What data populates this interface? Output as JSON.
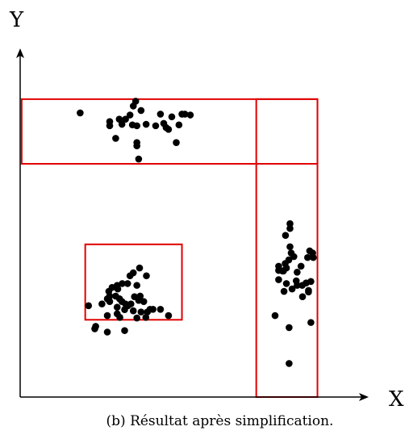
{
  "axes": {
    "x_label": "X",
    "y_label": "Y"
  },
  "caption": "(b) Résultat après simplification.",
  "colors": {
    "points": "#000000",
    "boxes": "#e00000",
    "axes": "#000000"
  },
  "chart_data": {
    "type": "scatter",
    "xlabel": "X",
    "ylabel": "Y",
    "xlim": [
      0,
      100
    ],
    "ylim": [
      0,
      100
    ],
    "grid": false,
    "boxes": [
      {
        "x0": 0.5,
        "x1": 99.6,
        "y0": 77.9,
        "y1": 99.5
      },
      {
        "x0": 79.1,
        "x1": 99.6,
        "y0": 0.0,
        "y1": 99.5
      },
      {
        "x0": 21.8,
        "x1": 54.2,
        "y0": 25.8,
        "y1": 51.0
      }
    ],
    "points": [
      [
        20.1,
        94.9
      ],
      [
        37.9,
        97.2
      ],
      [
        38.7,
        98.8
      ],
      [
        40.5,
        95.7
      ],
      [
        35.3,
        92.8
      ],
      [
        34.1,
        91.1
      ],
      [
        33.2,
        92.8
      ],
      [
        30.0,
        90.6
      ],
      [
        30.0,
        92.0
      ],
      [
        36.8,
        94.2
      ],
      [
        37.6,
        90.9
      ],
      [
        39.1,
        90.6
      ],
      [
        42.2,
        91.1
      ],
      [
        45.4,
        90.6
      ],
      [
        47.0,
        94.5
      ],
      [
        48.1,
        91.4
      ],
      [
        49.7,
        89.4
      ],
      [
        48.9,
        90.0
      ],
      [
        50.8,
        93.6
      ],
      [
        53.2,
        90.9
      ],
      [
        54.2,
        94.5
      ],
      [
        55.2,
        94.5
      ],
      [
        57.0,
        94.2
      ],
      [
        52.3,
        85.0
      ],
      [
        39.1,
        85.0
      ],
      [
        39.1,
        83.9
      ],
      [
        39.7,
        79.5
      ],
      [
        32.0,
        86.4
      ],
      [
        37.9,
        41.5
      ],
      [
        40.0,
        43.1
      ],
      [
        36.8,
        40.5
      ],
      [
        42.3,
        40.5
      ],
      [
        39.1,
        37.3
      ],
      [
        36.0,
        37.9
      ],
      [
        32.5,
        37.3
      ],
      [
        34.2,
        37.9
      ],
      [
        32.7,
        36.1
      ],
      [
        30.8,
        36.6
      ],
      [
        29.7,
        35.3
      ],
      [
        32.0,
        33.7
      ],
      [
        30.0,
        33.7
      ],
      [
        33.3,
        32.8
      ],
      [
        29.2,
        32.8
      ],
      [
        30.0,
        31.9
      ],
      [
        32.5,
        30.0
      ],
      [
        34.1,
        31.9
      ],
      [
        35.3,
        31.1
      ],
      [
        37.1,
        31.1
      ],
      [
        38.3,
        33.5
      ],
      [
        40.2,
        33.7
      ],
      [
        41.4,
        31.9
      ],
      [
        43.5,
        29.3
      ],
      [
        44.5,
        29.3
      ],
      [
        47.0,
        29.3
      ],
      [
        49.7,
        27.2
      ],
      [
        42.6,
        28.4
      ],
      [
        42.1,
        26.6
      ],
      [
        40.5,
        28.4
      ],
      [
        39.1,
        26.4
      ],
      [
        37.9,
        28.8
      ],
      [
        36.1,
        30.5
      ],
      [
        35.0,
        29.2
      ],
      [
        33.4,
        26.6
      ],
      [
        32.5,
        27.8
      ],
      [
        29.2,
        27.2
      ],
      [
        27.4,
        31.1
      ],
      [
        22.9,
        30.5
      ],
      [
        25.0,
        22.8
      ],
      [
        25.3,
        23.6
      ],
      [
        29.2,
        21.7
      ],
      [
        35.0,
        22.2
      ],
      [
        39.7,
        32.3
      ],
      [
        90.4,
        56.3
      ],
      [
        90.4,
        57.9
      ],
      [
        88.9,
        54.0
      ],
      [
        90.4,
        50.2
      ],
      [
        90.8,
        48.1
      ],
      [
        97.0,
        48.8
      ],
      [
        98.0,
        48.1
      ],
      [
        98.2,
        46.6
      ],
      [
        91.7,
        46.9
      ],
      [
        90.0,
        45.8
      ],
      [
        96.3,
        46.6
      ],
      [
        88.8,
        44.6
      ],
      [
        89.2,
        43.1
      ],
      [
        87.9,
        42.1
      ],
      [
        86.6,
        43.7
      ],
      [
        86.6,
        42.3
      ],
      [
        88.2,
        42.1
      ],
      [
        94.1,
        43.7
      ],
      [
        92.8,
        41.7
      ],
      [
        92.5,
        38.8
      ],
      [
        94.5,
        37.3
      ],
      [
        95.8,
        38.1
      ],
      [
        97.4,
        38.6
      ],
      [
        92.8,
        37.3
      ],
      [
        91.1,
        36.1
      ],
      [
        96.6,
        35.6
      ],
      [
        96.6,
        35.1
      ],
      [
        94.6,
        33.5
      ],
      [
        89.2,
        37.9
      ],
      [
        86.6,
        39.2
      ],
      [
        88.4,
        35.3
      ],
      [
        85.4,
        27.2
      ],
      [
        90.1,
        23.2
      ],
      [
        97.4,
        24.9
      ],
      [
        90.1,
        11.2
      ]
    ]
  }
}
